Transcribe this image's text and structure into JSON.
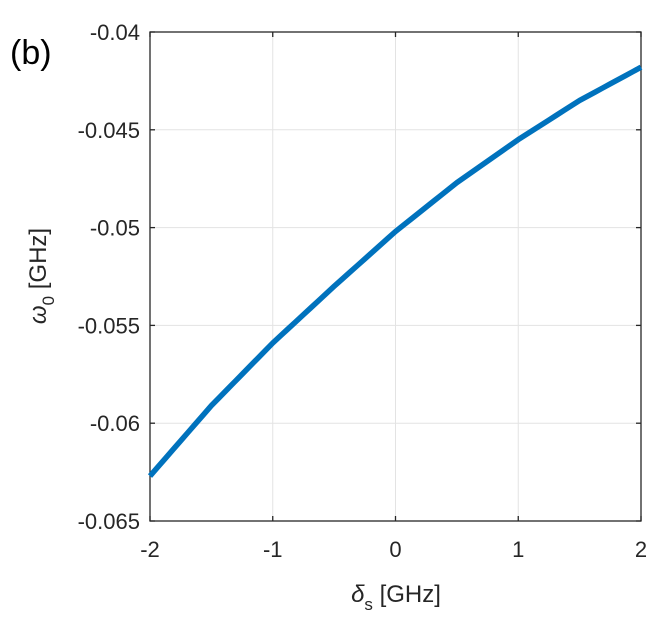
{
  "panel_label": "(b)",
  "chart_data": {
    "type": "line",
    "xlabel": {
      "symbol": "δ",
      "subscript": "s",
      "unit": " [GHz]"
    },
    "ylabel": {
      "symbol": "ω",
      "subscript": "0",
      "unit": " [GHz]"
    },
    "xlim": [
      -2,
      2
    ],
    "ylim": [
      -0.065,
      -0.04
    ],
    "xticks": [
      -2,
      -1,
      0,
      1,
      2
    ],
    "xtick_labels": [
      "-2",
      "-1",
      "0",
      "1",
      "2"
    ],
    "yticks": [
      -0.065,
      -0.06,
      -0.055,
      -0.05,
      -0.045,
      -0.04
    ],
    "ytick_labels": [
      "-0.065",
      "-0.06",
      "-0.055",
      "-0.05",
      "-0.045",
      "-0.04"
    ],
    "grid": true,
    "series": [
      {
        "color": "#0072BD",
        "x": [
          -2,
          -1.5,
          -1,
          -0.5,
          0,
          0.5,
          1,
          1.5,
          2
        ],
        "y": [
          -0.0627,
          -0.0591,
          -0.0559,
          -0.053,
          -0.0502,
          -0.0477,
          -0.0455,
          -0.0435,
          -0.0418
        ]
      }
    ]
  }
}
